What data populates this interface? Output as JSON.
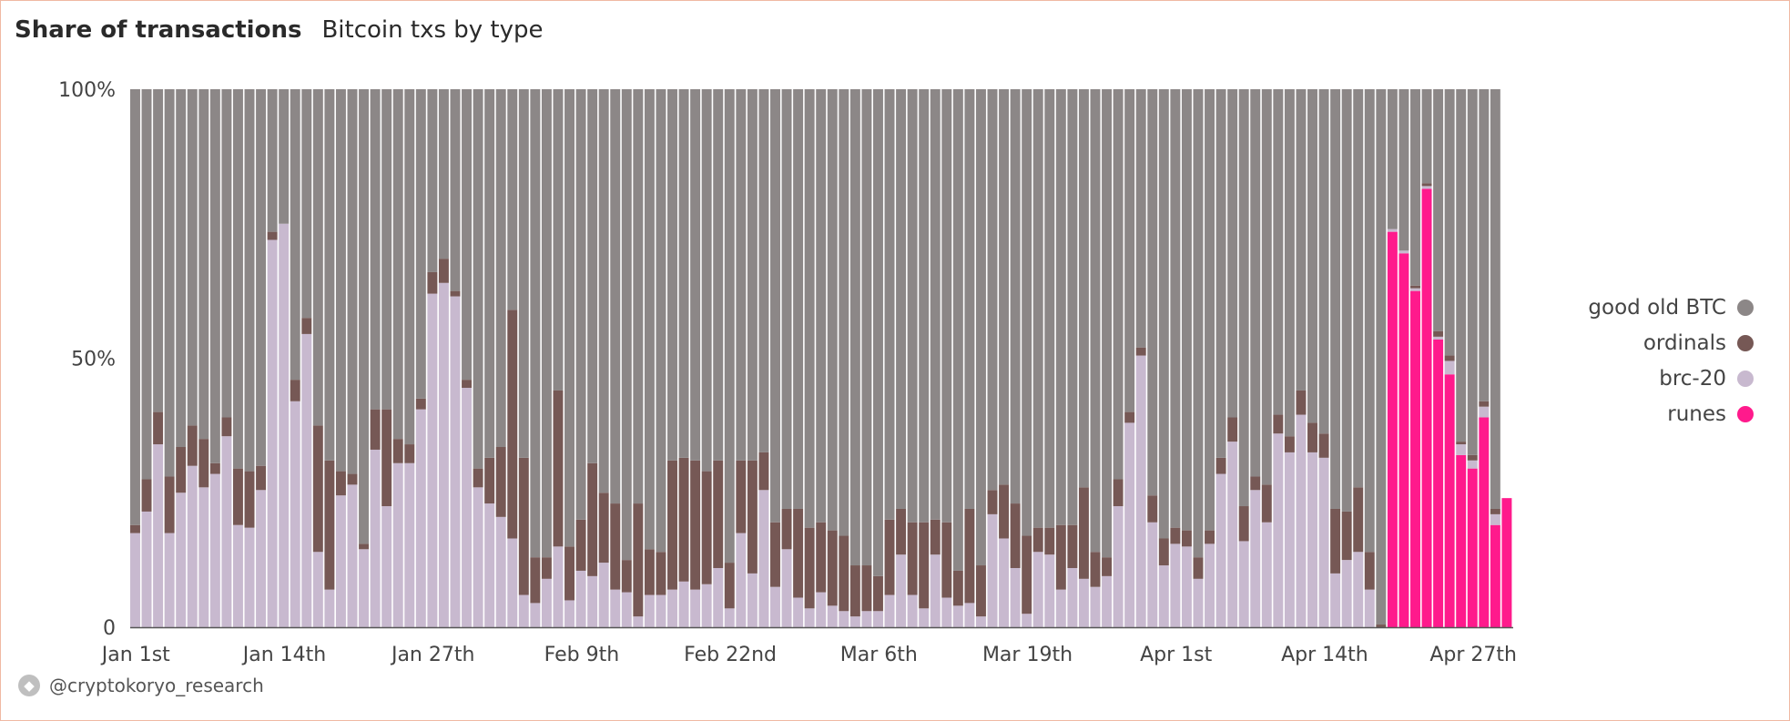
{
  "header": {
    "title": "Share of transactions",
    "subtitle": "Bitcoin txs by type"
  },
  "legend": [
    {
      "label": "good old BTC",
      "color": "#8c8787"
    },
    {
      "label": "ordinals",
      "color": "#765855"
    },
    {
      "label": "brc-20",
      "color": "#c8b9cf"
    },
    {
      "label": "runes",
      "color": "#ff1a8c"
    }
  ],
  "source": {
    "icon": "ethereum-icon",
    "handle": "@cryptokoryo_research"
  },
  "chart_data": {
    "type": "bar",
    "stacked": true,
    "ylim": [
      0,
      100
    ],
    "yticks": [
      {
        "value": 0,
        "label": "0"
      },
      {
        "value": 50,
        "label": "50%"
      },
      {
        "value": 100,
        "label": "100%"
      }
    ],
    "xticks": [
      {
        "index": 0,
        "label": "Jan 1st"
      },
      {
        "index": 13,
        "label": "Jan 14th"
      },
      {
        "index": 26,
        "label": "Jan 27th"
      },
      {
        "index": 39,
        "label": "Feb 9th"
      },
      {
        "index": 52,
        "label": "Feb 22nd"
      },
      {
        "index": 65,
        "label": "Mar 6th"
      },
      {
        "index": 78,
        "label": "Mar 19th"
      },
      {
        "index": 91,
        "label": "Apr 1st"
      },
      {
        "index": 104,
        "label": "Apr 14th"
      },
      {
        "index": 117,
        "label": "Apr 27th"
      }
    ],
    "grid": false,
    "legend_position": "right",
    "series": [
      {
        "name": "runes",
        "color": "#ff1a8c",
        "values": [
          0,
          0,
          0,
          0,
          0,
          0,
          0,
          0,
          0,
          0,
          0,
          0,
          0,
          0,
          0,
          0,
          0,
          0,
          0,
          0,
          0,
          0,
          0,
          0,
          0,
          0,
          0,
          0,
          0,
          0,
          0,
          0,
          0,
          0,
          0,
          0,
          0,
          0,
          0,
          0,
          0,
          0,
          0,
          0,
          0,
          0,
          0,
          0,
          0,
          0,
          0,
          0,
          0,
          0,
          0,
          0,
          0,
          0,
          0,
          0,
          0,
          0,
          0,
          0,
          0,
          0,
          0,
          0,
          0,
          0,
          0,
          0,
          0,
          0,
          0,
          0,
          0,
          0,
          0,
          0,
          0,
          0,
          0,
          0,
          0,
          0,
          0,
          0,
          0,
          0,
          0,
          0,
          0,
          0,
          0,
          0,
          0,
          0,
          0,
          0,
          0,
          0,
          0,
          0,
          0,
          0,
          0,
          0,
          0,
          0,
          73.5,
          69.5,
          62.5,
          81.5,
          53.5,
          47,
          32,
          29.5,
          39,
          19,
          24
        ]
      },
      {
        "name": "brc-20",
        "color": "#c8b9cf",
        "values": [
          17.5,
          21.5,
          34,
          17.5,
          25,
          30,
          26,
          28.5,
          35.5,
          19,
          18.5,
          25.5,
          72,
          75,
          42,
          54.5,
          14,
          7,
          24.5,
          26.5,
          14.5,
          33,
          22.5,
          30.5,
          30.5,
          40.5,
          62,
          64,
          61.5,
          44.5,
          26,
          23,
          20.5,
          16.5,
          6,
          4.5,
          9,
          15,
          5,
          10.5,
          9.5,
          12,
          7,
          6.5,
          2,
          6,
          6,
          7,
          8.5,
          7,
          8,
          11,
          3.5,
          17.5,
          10,
          25.5,
          7.5,
          14.5,
          5.5,
          3.5,
          6.5,
          4,
          3,
          2,
          3,
          3,
          6,
          13.5,
          6,
          3.5,
          13.5,
          5.5,
          4,
          4.5,
          2,
          21,
          16.5,
          11,
          2.5,
          14,
          13.5,
          7,
          11,
          9,
          7.5,
          9.5,
          22.5,
          38,
          50.5,
          19.5,
          11.5,
          15.5,
          15,
          9,
          15.5,
          28.5,
          34.5,
          16,
          25.5,
          19.5,
          36,
          32.5,
          39.5,
          32.5,
          31.5,
          10,
          12.5,
          14,
          7,
          0,
          0.5,
          0.5,
          0.5,
          0.5,
          0.5,
          2.5,
          2,
          1.5,
          2,
          2
        ]
      },
      {
        "name": "ordinals",
        "color": "#765855",
        "values": [
          1.5,
          6,
          6,
          10.5,
          8.5,
          7.5,
          9,
          2,
          3.5,
          10.5,
          10.5,
          4.5,
          1.5,
          0,
          4,
          3,
          23.5,
          24,
          4.5,
          2,
          1,
          7.5,
          18,
          4.5,
          3.5,
          2,
          4,
          4.5,
          1,
          1.5,
          3.5,
          8.5,
          13,
          42.5,
          25.5,
          8.5,
          4,
          29,
          10,
          9.5,
          21,
          13,
          16,
          6,
          21,
          8.5,
          8,
          24,
          23,
          24,
          21,
          20,
          8.5,
          13.5,
          21,
          7,
          12,
          7.5,
          16.5,
          15,
          13,
          14,
          14,
          9.5,
          8.5,
          6.5,
          14,
          8.5,
          13.5,
          16,
          6.5,
          14,
          6.5,
          17.5,
          9.5,
          4.5,
          10,
          12,
          14.5,
          4.5,
          5,
          12,
          8,
          17,
          6.5,
          3.5,
          5,
          2,
          1.5,
          5,
          5,
          3,
          3,
          4,
          2.5,
          3,
          4.5,
          6.5,
          2.5,
          7,
          3.5,
          3,
          4.5,
          5.5,
          4.5,
          12,
          9,
          12,
          7,
          0.5,
          0,
          0,
          0.5,
          0.5,
          1,
          1,
          0.5,
          1,
          1,
          1
        ]
      }
    ]
  }
}
